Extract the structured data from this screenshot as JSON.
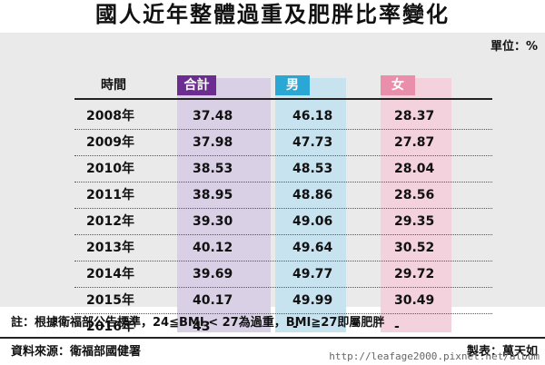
{
  "title": "國人近年整體過重及肥胖比率變化",
  "unit": "單位：%",
  "colors": {
    "total": "#6b2d8f",
    "male": "#2aa7d5",
    "female": "#ea8fab"
  },
  "chart_data": {
    "type": "table",
    "title": "國人近年整體過重及肥胖比率變化",
    "columns": [
      "時間",
      "合計",
      "男",
      "女"
    ],
    "rows": [
      [
        "2008年",
        "37.48",
        "46.18",
        "28.37"
      ],
      [
        "2009年",
        "37.98",
        "47.73",
        "27.87"
      ],
      [
        "2010年",
        "38.53",
        "48.53",
        "28.04"
      ],
      [
        "2011年",
        "38.95",
        "48.86",
        "28.56"
      ],
      [
        "2012年",
        "39.30",
        "49.06",
        "29.35"
      ],
      [
        "2013年",
        "40.12",
        "49.64",
        "30.52"
      ],
      [
        "2014年",
        "39.69",
        "49.77",
        "29.72"
      ],
      [
        "2015年",
        "40.17",
        "49.99",
        "30.49"
      ],
      [
        "2016年",
        "43",
        "-",
        "-"
      ]
    ]
  },
  "note": "註：根據衛福部公告標準，24≦BMI < 27為過重，BMI≧27即屬肥胖",
  "source": "資料來源：衛福部國健署",
  "maker": "製表：萬天如",
  "watermark": "http://leafage2000.pixnet.net/album"
}
